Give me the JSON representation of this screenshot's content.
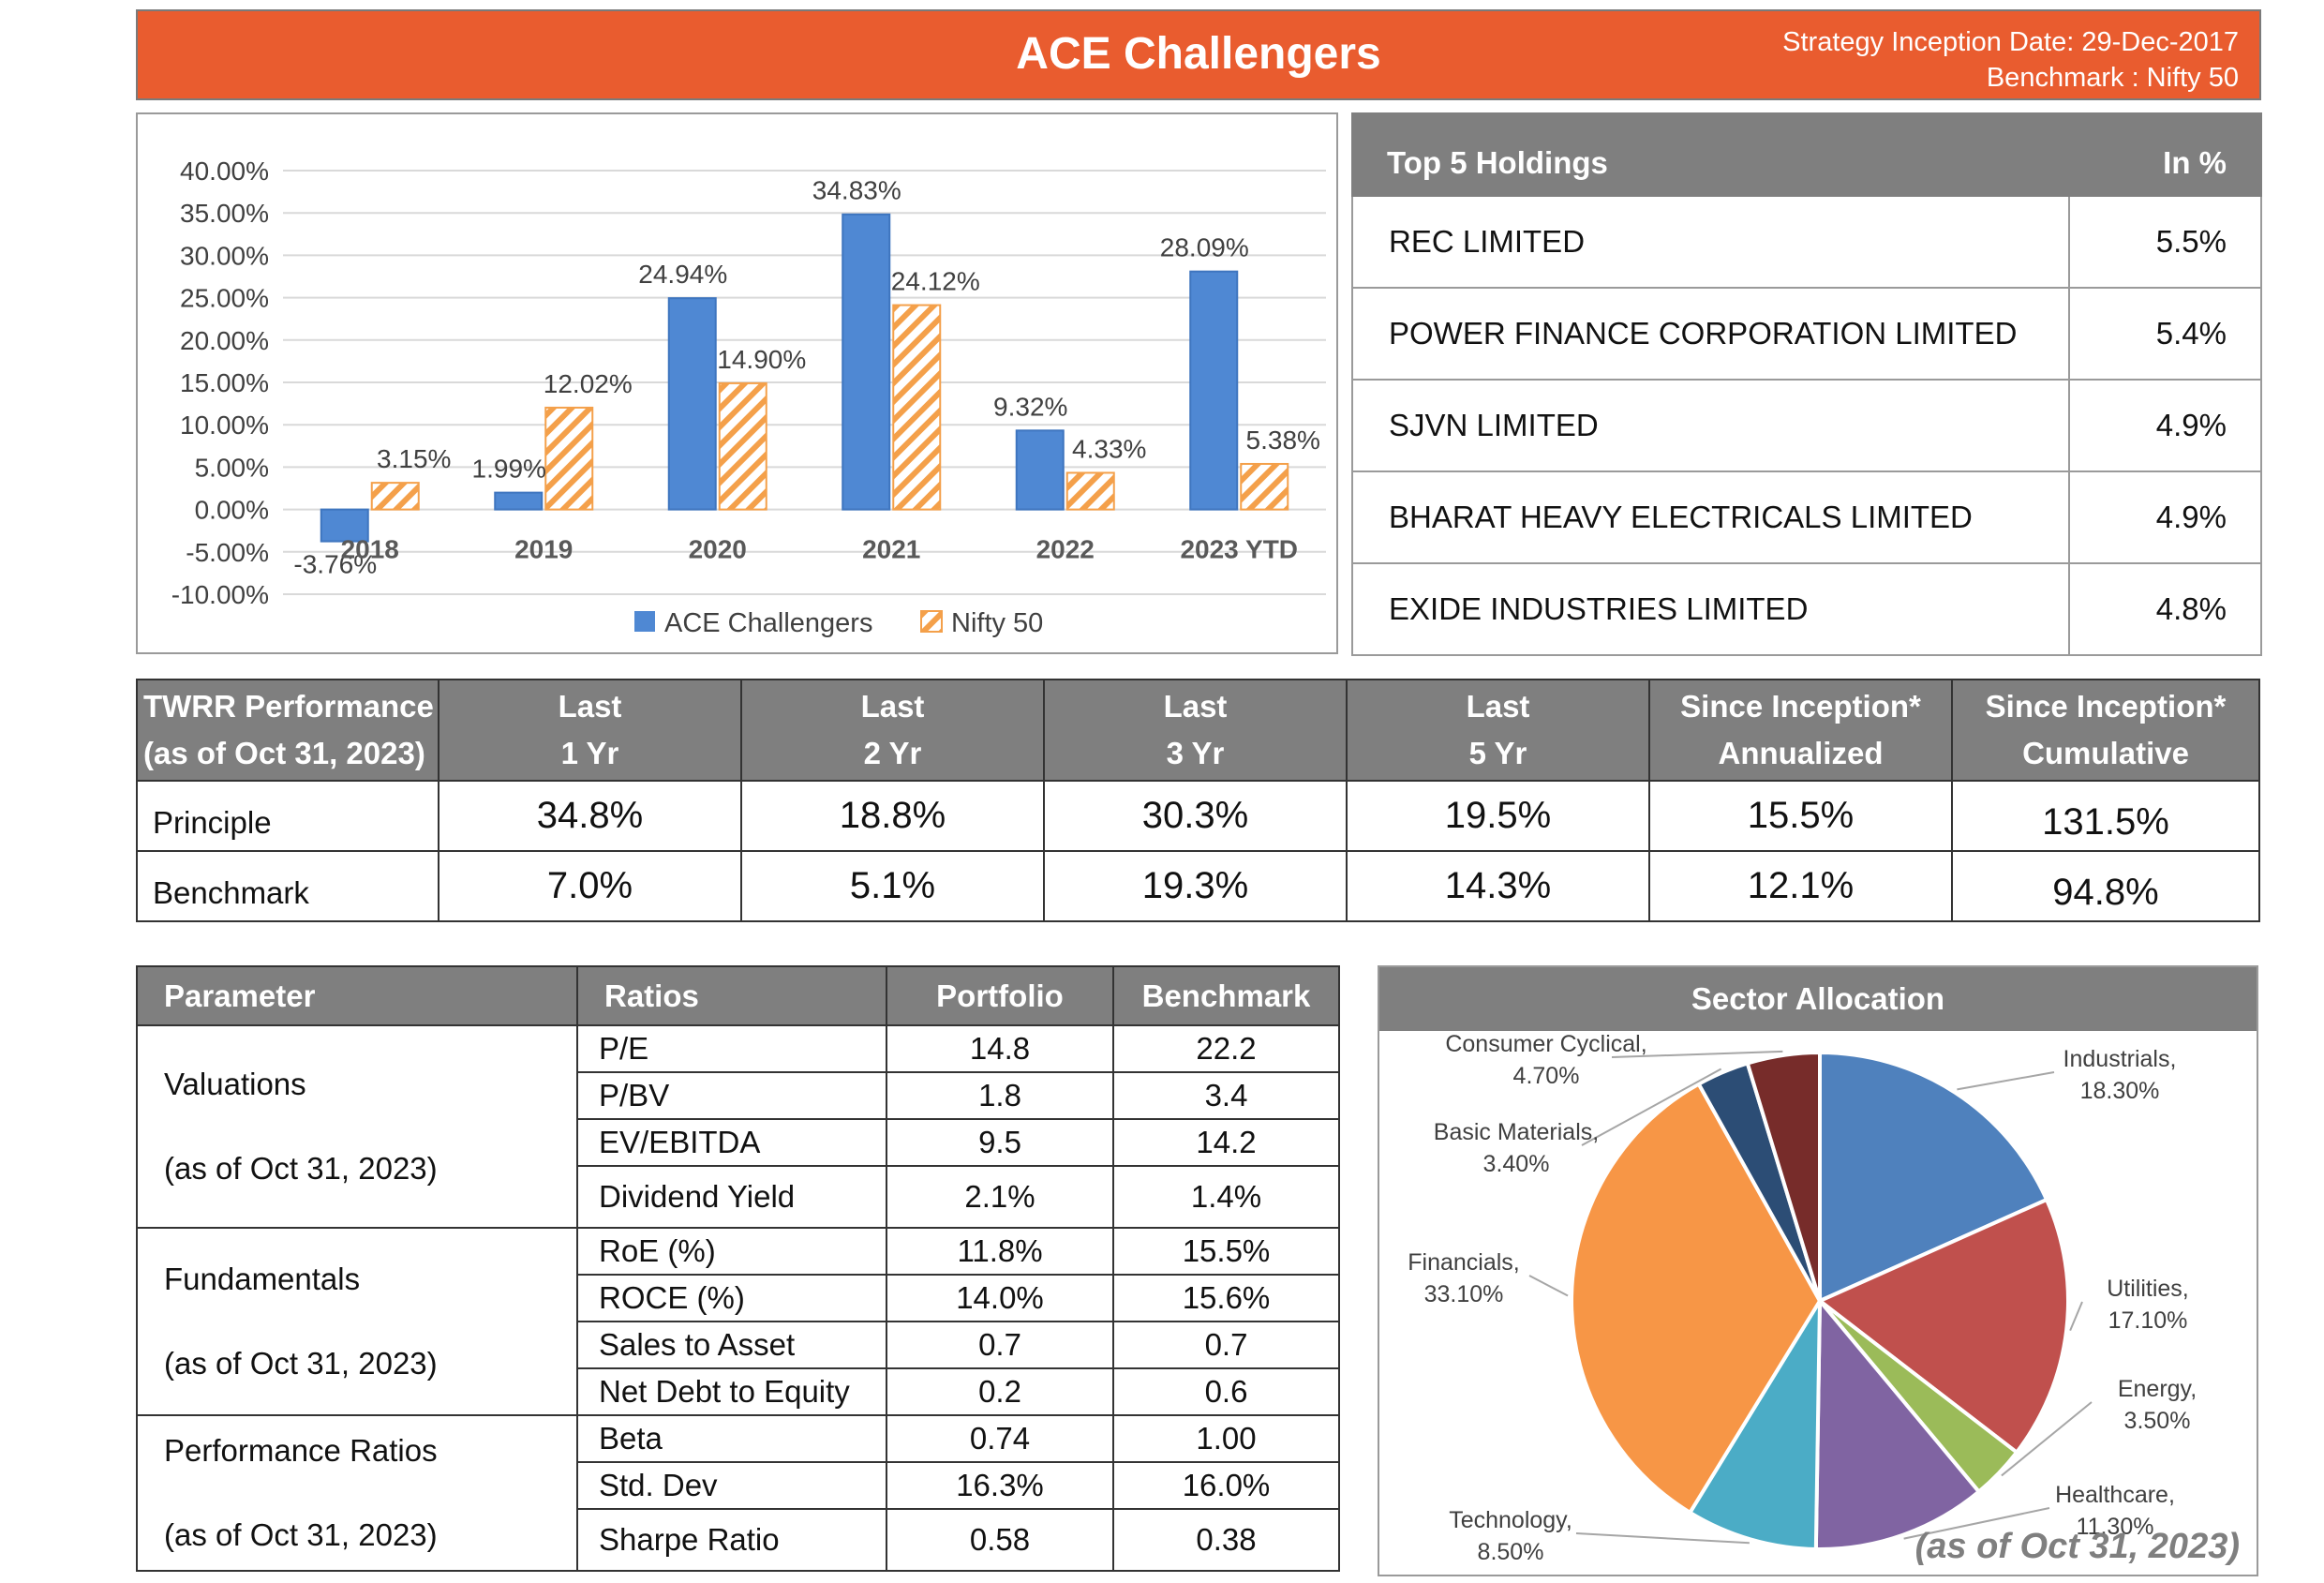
{
  "header": {
    "title": "ACE Challengers",
    "inception": "Strategy Inception Date: 29-Dec-2017",
    "benchmark": "Benchmark : Nifty 50"
  },
  "chart_data": {
    "type": "bar",
    "categories": [
      "2018",
      "2019",
      "2020",
      "2021",
      "2022",
      "2023 YTD"
    ],
    "series": [
      {
        "name": "ACE Challengers",
        "values": [
          -3.76,
          1.99,
          24.94,
          34.83,
          9.32,
          28.09
        ],
        "labels": [
          "-3.76%",
          "1.99%",
          "24.94%",
          "34.83%",
          "9.32%",
          "28.09%"
        ],
        "color": "#4f88d3"
      },
      {
        "name": "Nifty 50",
        "values": [
          3.15,
          12.02,
          14.9,
          24.12,
          4.33,
          5.38
        ],
        "labels": [
          "3.15%",
          "12.02%",
          "14.90%",
          "24.12%",
          "4.33%",
          "5.38%"
        ],
        "color": "#f4a04a"
      }
    ],
    "yticks": [
      "40.00%",
      "35.00%",
      "30.00%",
      "25.00%",
      "20.00%",
      "15.00%",
      "10.00%",
      "5.00%",
      "0.00%",
      "-5.00%",
      "-10.00%"
    ],
    "ylim": [
      -10,
      40
    ],
    "grid": true,
    "legend": "bottom-center"
  },
  "holdings": {
    "header_name": "Top 5 Holdings",
    "header_pct": "In %",
    "rows": [
      {
        "name": "REC LIMITED",
        "pct": "5.5%"
      },
      {
        "name": "POWER FINANCE CORPORATION LIMITED",
        "pct": "5.4%"
      },
      {
        "name": "SJVN LIMITED",
        "pct": "4.9%"
      },
      {
        "name": "BHARAT HEAVY ELECTRICALS LIMITED",
        "pct": "4.9%"
      },
      {
        "name": "EXIDE INDUSTRIES LIMITED",
        "pct": "4.8%"
      }
    ]
  },
  "twrr": {
    "head_line1": "TWRR Performance",
    "head_line2": "(as of Oct 31, 2023)",
    "columns": [
      {
        "l1": "Last",
        "l2": "1 Yr"
      },
      {
        "l1": "Last",
        "l2": "2 Yr"
      },
      {
        "l1": "Last",
        "l2": "3 Yr"
      },
      {
        "l1": "Last",
        "l2": "5 Yr"
      },
      {
        "l1": "Since Inception*",
        "l2": "Annualized"
      },
      {
        "l1": "Since Inception*",
        "l2": "Cumulative"
      }
    ],
    "rows": [
      {
        "label": "Principle",
        "values": [
          "34.8%",
          "18.8%",
          "30.3%",
          "19.5%",
          "15.5%",
          "131.5%"
        ]
      },
      {
        "label": "Benchmark",
        "values": [
          "7.0%",
          "5.1%",
          "19.3%",
          "14.3%",
          "12.1%",
          "94.8%"
        ]
      }
    ]
  },
  "params": {
    "headers": [
      "Parameter",
      "Ratios",
      "Portfolio",
      "Benchmark"
    ],
    "groups": [
      {
        "name": "Valuations",
        "asof": "(as of Oct 31, 2023)",
        "rows": [
          {
            "ratio": "P/E",
            "portfolio": "14.8",
            "benchmark": "22.2"
          },
          {
            "ratio": "P/BV",
            "portfolio": "1.8",
            "benchmark": "3.4"
          },
          {
            "ratio": "EV/EBITDA",
            "portfolio": "9.5",
            "benchmark": "14.2"
          },
          {
            "ratio": "Dividend Yield",
            "portfolio": "2.1%",
            "benchmark": "1.4%"
          }
        ]
      },
      {
        "name": "Fundamentals",
        "asof": "(as of Oct 31, 2023)",
        "rows": [
          {
            "ratio": "RoE (%)",
            "portfolio": "11.8%",
            "benchmark": "15.5%"
          },
          {
            "ratio": "ROCE (%)",
            "portfolio": "14.0%",
            "benchmark": "15.6%"
          },
          {
            "ratio": "Sales to Asset",
            "portfolio": "0.7",
            "benchmark": "0.7"
          },
          {
            "ratio": "Net Debt to Equity",
            "portfolio": "0.2",
            "benchmark": "0.6"
          }
        ]
      },
      {
        "name": "Performance Ratios",
        "asof": "(as of Oct 31, 2023)",
        "rows": [
          {
            "ratio": "Beta",
            "portfolio": "0.74",
            "benchmark": "1.00"
          },
          {
            "ratio": "Std. Dev",
            "portfolio": "16.3%",
            "benchmark": "16.0%"
          },
          {
            "ratio": "Sharpe Ratio",
            "portfolio": "0.58",
            "benchmark": "0.38"
          }
        ]
      }
    ]
  },
  "sector": {
    "title": "Sector Allocation",
    "asof": "(as of Oct 31, 2023)",
    "slices": [
      {
        "name": "Industrials,",
        "pct": "18.30%",
        "value": 18.3,
        "color": "#4f81bd"
      },
      {
        "name": "Utilities,",
        "pct": "17.10%",
        "value": 17.1,
        "color": "#c0504d"
      },
      {
        "name": "Energy,",
        "pct": "3.50%",
        "value": 3.5,
        "color": "#9bbb59"
      },
      {
        "name": "Healthcare,",
        "pct": "11.30%",
        "value": 11.3,
        "color": "#8064a2"
      },
      {
        "name": "Technology,",
        "pct": "8.50%",
        "value": 8.5,
        "color": "#4bacc6"
      },
      {
        "name": "Financials,",
        "pct": "33.10%",
        "value": 33.1,
        "color": "#f79646"
      },
      {
        "name": "Basic Materials,",
        "pct": "3.40%",
        "value": 3.4,
        "color": "#2c4d75"
      },
      {
        "name": "Consumer Cyclical,",
        "pct": "4.70%",
        "value": 4.7,
        "color": "#772c2a"
      }
    ]
  }
}
